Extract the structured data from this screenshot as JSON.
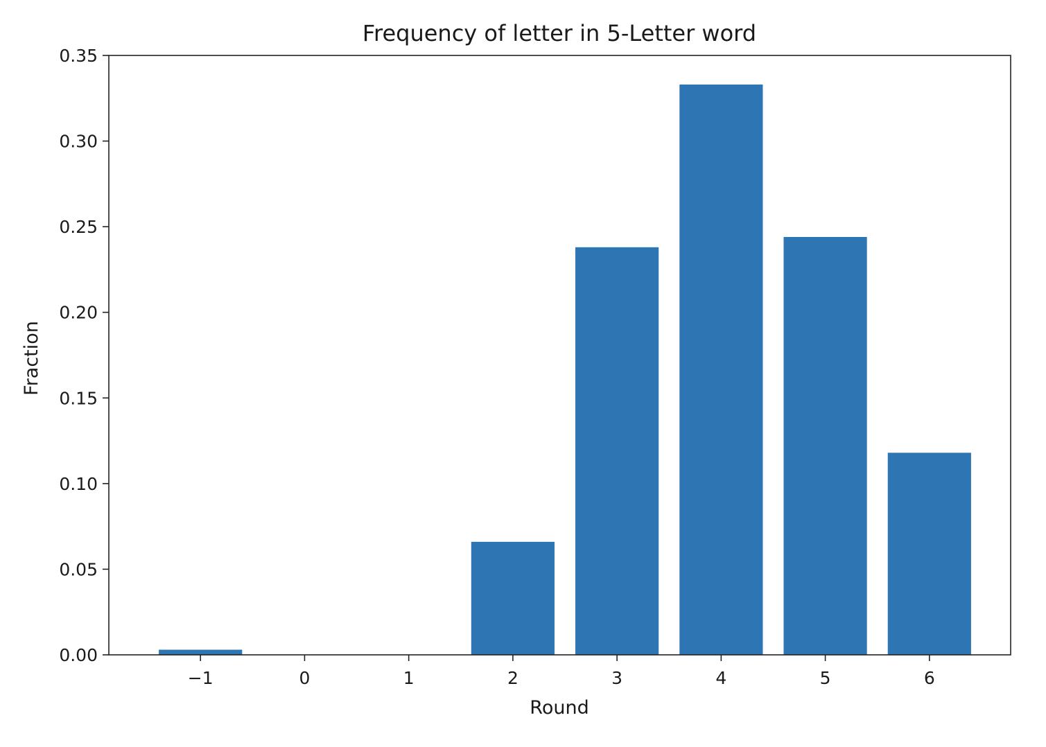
{
  "chart_data": {
    "type": "bar",
    "title": "Frequency of letter in 5-Letter word",
    "xlabel": "Round",
    "ylabel": "Fraction",
    "categories": [
      -1,
      0,
      1,
      2,
      3,
      4,
      5,
      6
    ],
    "values": [
      0.003,
      0.0,
      0.0,
      0.066,
      0.238,
      0.333,
      0.244,
      0.118
    ],
    "xlim": [
      -1.88,
      6.78
    ],
    "ylim": [
      0,
      0.35
    ],
    "x_ticks": [
      -1,
      0,
      1,
      2,
      3,
      4,
      5,
      6
    ],
    "x_tick_labels": [
      "−1",
      "0",
      "1",
      "2",
      "3",
      "4",
      "5",
      "6"
    ],
    "y_ticks": [
      0.0,
      0.05,
      0.1,
      0.15,
      0.2,
      0.25,
      0.3,
      0.35
    ],
    "y_tick_labels": [
      "0.00",
      "0.05",
      "0.10",
      "0.15",
      "0.20",
      "0.25",
      "0.30",
      "0.35"
    ],
    "bar_width": 0.8,
    "bar_color": "#2e75b4",
    "grid": false,
    "legend": "none"
  }
}
